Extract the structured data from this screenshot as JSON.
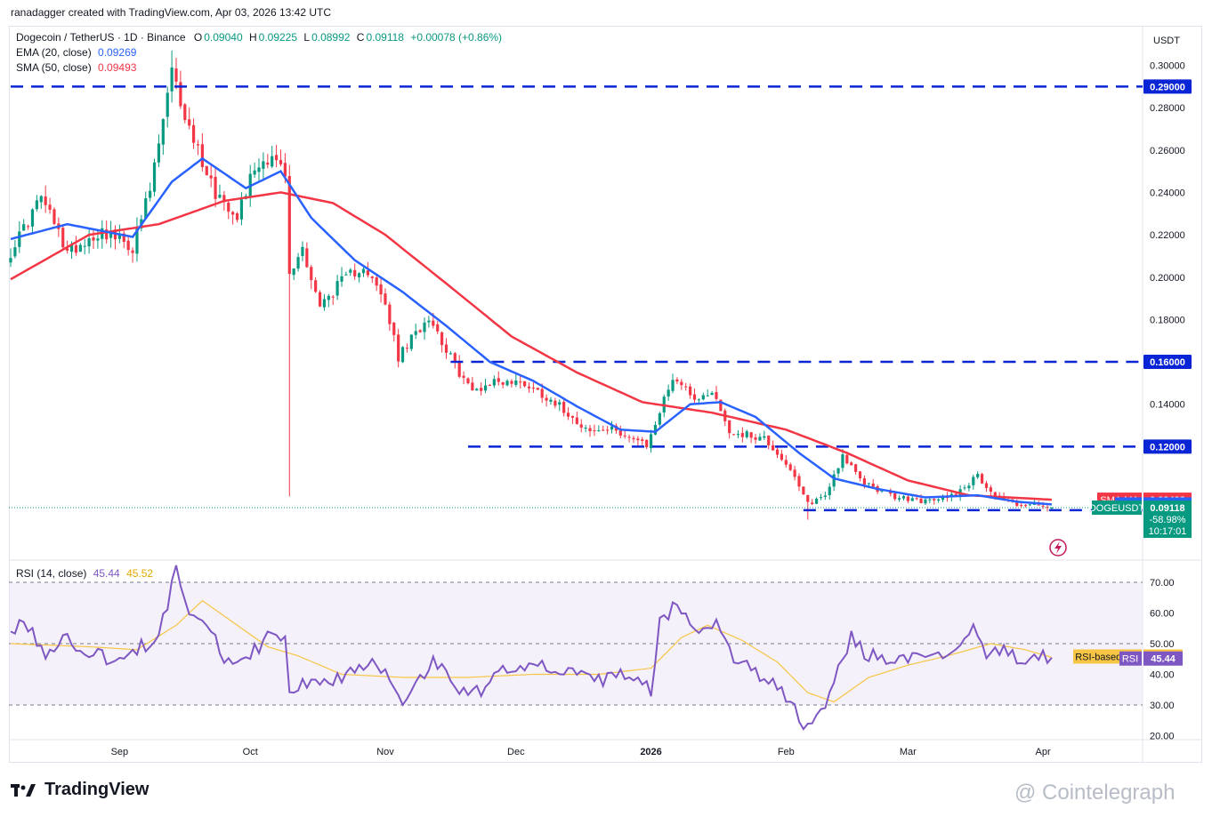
{
  "credit": "ranadagger created with TradingView.com, Apr 03, 2026 13:42 UTC",
  "legend": {
    "symbol": "Dogecoin / TetherUS · 1D · Binance",
    "o_label": "O",
    "o": "0.09040",
    "h_label": "H",
    "h": "0.09225",
    "l_label": "L",
    "l": "0.08992",
    "c_label": "C",
    "c": "0.09118",
    "change": "+0.00078 (+0.86%)",
    "ema_label": "EMA (20, close)",
    "ema_value": "0.09269",
    "sma_label": "SMA (50, close)",
    "sma_value": "0.09493",
    "rsi_label": "RSI (14, close)",
    "rsi_value": "45.44",
    "rsi_ma_value": "45.52"
  },
  "colors": {
    "up": "#089981",
    "down": "#f23645",
    "ema": "#2962ff",
    "sma": "#f23645",
    "level": "#0a25d6",
    "rsi": "#7e57c2",
    "rsi_ma": "#f7c544"
  },
  "chart_data": [
    {
      "type": "candlestick",
      "title": "Dogecoin / TetherUS · 1D · Binance",
      "currency": "USDT",
      "ylim": [
        0.085,
        0.307
      ],
      "y_ticks": [
        "0.30000",
        "0.28000",
        "0.26000",
        "0.24000",
        "0.22000",
        "0.20000",
        "0.18000",
        "0.16000",
        "0.14000",
        "0.12000"
      ],
      "x_ticks": [
        "Sep",
        "Oct",
        "Nov",
        "Dec",
        "2026",
        "Feb",
        "Mar",
        "Apr"
      ],
      "x_tick_dates": [
        "2025-09-01",
        "2025-10-01",
        "2025-11-01",
        "2025-12-01",
        "2026-01-01",
        "2026-02-01",
        "2026-03-01",
        "2026-04-01"
      ],
      "date_range": [
        "2025-08-07",
        "2026-04-03"
      ],
      "close_anchors": [
        [
          "2025-08-07",
          0.212
        ],
        [
          "2025-08-14",
          0.238
        ],
        [
          "2025-08-20",
          0.212
        ],
        [
          "2025-08-28",
          0.222
        ],
        [
          "2025-09-04",
          0.214
        ],
        [
          "2025-09-08",
          0.241
        ],
        [
          "2025-09-13",
          0.296
        ],
        [
          "2025-09-17",
          0.27
        ],
        [
          "2025-09-23",
          0.24
        ],
        [
          "2025-09-28",
          0.23
        ],
        [
          "2025-10-02",
          0.252
        ],
        [
          "2025-10-06",
          0.258
        ],
        [
          "2025-10-09",
          0.248
        ],
        [
          "2025-10-10",
          0.2
        ],
        [
          "2025-10-13",
          0.214
        ],
        [
          "2025-10-17",
          0.186
        ],
        [
          "2025-10-21",
          0.196
        ],
        [
          "2025-10-27",
          0.206
        ],
        [
          "2025-11-01",
          0.187
        ],
        [
          "2025-11-04",
          0.162
        ],
        [
          "2025-11-11",
          0.182
        ],
        [
          "2025-11-17",
          0.158
        ],
        [
          "2025-11-21",
          0.146
        ],
        [
          "2025-11-26",
          0.151
        ],
        [
          "2025-12-03",
          0.15
        ],
        [
          "2025-12-10",
          0.141
        ],
        [
          "2025-12-18",
          0.127
        ],
        [
          "2025-12-24",
          0.128
        ],
        [
          "2025-12-31",
          0.12
        ],
        [
          "2026-01-06",
          0.153
        ],
        [
          "2026-01-12",
          0.142
        ],
        [
          "2026-01-15",
          0.147
        ],
        [
          "2026-01-19",
          0.127
        ],
        [
          "2026-01-27",
          0.124
        ],
        [
          "2026-02-01",
          0.112
        ],
        [
          "2026-02-06",
          0.093
        ],
        [
          "2026-02-10",
          0.097
        ],
        [
          "2026-02-14",
          0.116
        ],
        [
          "2026-02-18",
          0.104
        ],
        [
          "2026-02-26",
          0.096
        ],
        [
          "2026-03-06",
          0.094
        ],
        [
          "2026-03-12",
          0.098
        ],
        [
          "2026-03-17",
          0.106
        ],
        [
          "2026-03-21",
          0.097
        ],
        [
          "2026-03-26",
          0.093
        ],
        [
          "2026-04-03",
          0.09118
        ]
      ],
      "wick_extremes": [
        {
          "date": "2025-09-13",
          "high": 0.307
        },
        {
          "date": "2025-10-10",
          "low": 0.0965
        },
        {
          "date": "2026-02-06",
          "low": 0.0855
        }
      ],
      "ema_20_anchors": [
        [
          "2025-08-07",
          0.218
        ],
        [
          "2025-08-20",
          0.225
        ],
        [
          "2025-09-04",
          0.219
        ],
        [
          "2025-09-13",
          0.245
        ],
        [
          "2025-09-20",
          0.256
        ],
        [
          "2025-09-30",
          0.242
        ],
        [
          "2025-10-08",
          0.25
        ],
        [
          "2025-10-15",
          0.228
        ],
        [
          "2025-10-25",
          0.208
        ],
        [
          "2025-11-05",
          0.193
        ],
        [
          "2025-11-15",
          0.177
        ],
        [
          "2025-11-25",
          0.16
        ],
        [
          "2025-12-05",
          0.151
        ],
        [
          "2025-12-15",
          0.139
        ],
        [
          "2025-12-25",
          0.128
        ],
        [
          "2026-01-02",
          0.127
        ],
        [
          "2026-01-10",
          0.14
        ],
        [
          "2026-01-17",
          0.141
        ],
        [
          "2026-01-25",
          0.134
        ],
        [
          "2026-02-04",
          0.117
        ],
        [
          "2026-02-12",
          0.105
        ],
        [
          "2026-02-22",
          0.1
        ],
        [
          "2026-03-05",
          0.096
        ],
        [
          "2026-03-17",
          0.097
        ],
        [
          "2026-03-26",
          0.094
        ],
        [
          "2026-04-03",
          0.09269
        ]
      ],
      "sma_50_anchors": [
        [
          "2025-08-07",
          0.199
        ],
        [
          "2025-08-25",
          0.22
        ],
        [
          "2025-09-10",
          0.225
        ],
        [
          "2025-09-25",
          0.236
        ],
        [
          "2025-10-08",
          0.24
        ],
        [
          "2025-10-20",
          0.235
        ],
        [
          "2025-11-01",
          0.22
        ],
        [
          "2025-11-15",
          0.197
        ],
        [
          "2025-11-30",
          0.172
        ],
        [
          "2025-12-15",
          0.155
        ],
        [
          "2025-12-30",
          0.141
        ],
        [
          "2026-01-15",
          0.136
        ],
        [
          "2026-02-01",
          0.128
        ],
        [
          "2026-02-15",
          0.117
        ],
        [
          "2026-03-01",
          0.104
        ],
        [
          "2026-03-15",
          0.097
        ],
        [
          "2026-04-03",
          0.09493
        ]
      ],
      "levels": [
        {
          "value": 0.29,
          "label": "0.29000",
          "from": "2025-08-07"
        },
        {
          "value": 0.16,
          "label": "0.16000",
          "from": "2025-11-16"
        },
        {
          "value": 0.12,
          "label": "0.12000",
          "from": "2025-11-20"
        },
        {
          "value": 0.09,
          "label": "0.09000",
          "from": "2026-02-05"
        }
      ],
      "price_labels": [
        {
          "name": "SMA:MA",
          "value": "0.09493"
        },
        {
          "name": "EMA",
          "value": "0.09269"
        },
        {
          "name": "DOGEUSDT",
          "value": "0.09118",
          "change": "-58.98%",
          "countdown": "10:17:01"
        }
      ]
    },
    {
      "type": "line",
      "title": "RSI (14, close)",
      "ylim": [
        18,
        76
      ],
      "y_ticks": [
        "70.00",
        "60.00",
        "50.00",
        "40.00",
        "30.00",
        "20.00"
      ],
      "overbought": 70,
      "oversold": 30,
      "midline": 50,
      "rsi_anchors": [
        [
          "2025-08-07",
          53
        ],
        [
          "2025-08-10",
          58
        ],
        [
          "2025-08-15",
          46
        ],
        [
          "2025-08-20",
          52
        ],
        [
          "2025-08-25",
          47
        ],
        [
          "2025-09-01",
          44
        ],
        [
          "2025-09-05",
          48
        ],
        [
          "2025-09-10",
          52
        ],
        [
          "2025-09-14",
          74
        ],
        [
          "2025-09-17",
          62
        ],
        [
          "2025-09-21",
          58
        ],
        [
          "2025-09-25",
          45
        ],
        [
          "2025-09-30",
          44
        ],
        [
          "2025-10-05",
          53
        ],
        [
          "2025-10-09",
          50
        ],
        [
          "2025-10-10",
          34
        ],
        [
          "2025-10-14",
          38
        ],
        [
          "2025-10-18",
          36
        ],
        [
          "2025-10-24",
          41
        ],
        [
          "2025-10-29",
          44
        ],
        [
          "2025-11-02",
          40
        ],
        [
          "2025-11-05",
          32
        ],
        [
          "2025-11-12",
          44
        ],
        [
          "2025-11-18",
          36
        ],
        [
          "2025-11-22",
          34
        ],
        [
          "2025-11-28",
          42
        ],
        [
          "2025-12-04",
          44
        ],
        [
          "2025-12-10",
          42
        ],
        [
          "2025-12-15",
          39
        ],
        [
          "2025-12-20",
          38
        ],
        [
          "2025-12-26",
          40
        ],
        [
          "2026-01-01",
          35
        ],
        [
          "2026-01-03",
          56
        ],
        [
          "2026-01-07",
          64
        ],
        [
          "2026-01-12",
          52
        ],
        [
          "2026-01-16",
          58
        ],
        [
          "2026-01-20",
          44
        ],
        [
          "2026-01-26",
          40
        ],
        [
          "2026-01-31",
          34
        ],
        [
          "2026-02-03",
          28
        ],
        [
          "2026-02-06",
          22
        ],
        [
          "2026-02-10",
          30
        ],
        [
          "2026-02-13",
          42
        ],
        [
          "2026-02-16",
          52
        ],
        [
          "2026-02-20",
          46
        ],
        [
          "2026-02-27",
          44
        ],
        [
          "2026-03-05",
          45
        ],
        [
          "2026-03-12",
          48
        ],
        [
          "2026-03-16",
          57
        ],
        [
          "2026-03-19",
          47
        ],
        [
          "2026-03-23",
          48
        ],
        [
          "2026-03-27",
          43
        ],
        [
          "2026-03-31",
          47
        ],
        [
          "2026-04-03",
          45.44
        ]
      ],
      "rsi_ma_anchors": [
        [
          "2025-08-07",
          50
        ],
        [
          "2025-08-25",
          49
        ],
        [
          "2025-09-05",
          48
        ],
        [
          "2025-09-14",
          56
        ],
        [
          "2025-09-20",
          64
        ],
        [
          "2025-09-28",
          56
        ],
        [
          "2025-10-05",
          49
        ],
        [
          "2025-10-12",
          46
        ],
        [
          "2025-10-22",
          40
        ],
        [
          "2025-11-05",
          39
        ],
        [
          "2025-11-20",
          39
        ],
        [
          "2025-12-05",
          40
        ],
        [
          "2025-12-20",
          40
        ],
        [
          "2026-01-01",
          42
        ],
        [
          "2026-01-08",
          52
        ],
        [
          "2026-01-14",
          56
        ],
        [
          "2026-01-22",
          51
        ],
        [
          "2026-01-30",
          44
        ],
        [
          "2026-02-06",
          34
        ],
        [
          "2026-02-12",
          31
        ],
        [
          "2026-02-20",
          39
        ],
        [
          "2026-03-01",
          43
        ],
        [
          "2026-03-10",
          46
        ],
        [
          "2026-03-20",
          50
        ],
        [
          "2026-03-28",
          48
        ],
        [
          "2026-04-03",
          45.52
        ]
      ],
      "price_labels": [
        {
          "name": "RSI-based MA",
          "value": "45.52"
        },
        {
          "name": "RSI",
          "value": "45.44"
        }
      ]
    }
  ],
  "brand": "TradingView",
  "watermark": "@ Cointelegraph"
}
